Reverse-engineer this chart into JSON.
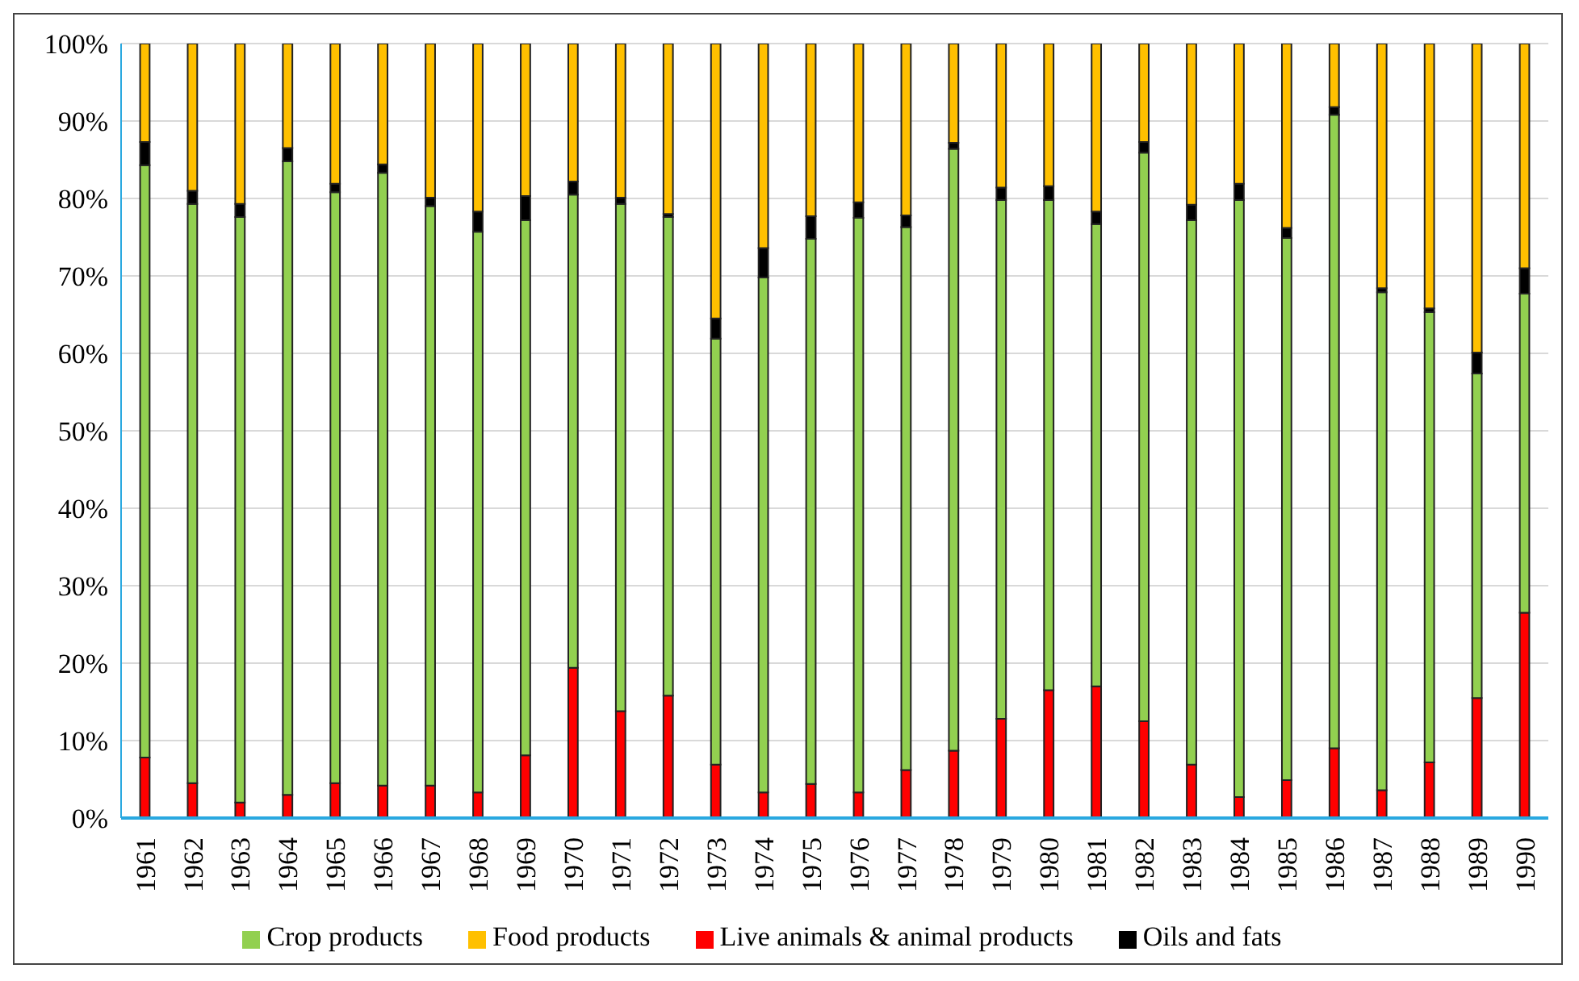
{
  "chart_data": {
    "type": "bar",
    "stacked": true,
    "categories": [
      "1961",
      "1962",
      "1963",
      "1964",
      "1965",
      "1966",
      "1967",
      "1968",
      "1969",
      "1970",
      "1971",
      "1972",
      "1973",
      "1974",
      "1975",
      "1976",
      "1977",
      "1978",
      "1979",
      "1980",
      "1981",
      "1982",
      "1983",
      "1984",
      "1985",
      "1986",
      "1987",
      "1988",
      "1989",
      "1990"
    ],
    "series": [
      {
        "name": "Live animals & animal products",
        "color": "#ff0000",
        "values": [
          7.8,
          4.5,
          2.0,
          3.0,
          4.5,
          4.2,
          4.2,
          3.3,
          8.1,
          19.4,
          13.8,
          15.8,
          6.9,
          3.3,
          4.4,
          3.3,
          6.2,
          8.7,
          12.8,
          16.5,
          17.0,
          12.5,
          6.9,
          2.7,
          4.9,
          9.0,
          3.6,
          7.2,
          15.5,
          26.5
        ]
      },
      {
        "name": "Crop products",
        "color": "#92d050",
        "values": [
          76.5,
          74.8,
          75.6,
          81.8,
          76.3,
          79.1,
          74.8,
          72.4,
          69.1,
          61.1,
          65.5,
          61.8,
          55.0,
          66.5,
          70.4,
          74.2,
          70.1,
          77.7,
          67.0,
          63.3,
          59.7,
          73.4,
          70.3,
          77.1,
          70.0,
          81.8,
          64.3,
          58.1,
          41.9,
          41.2
        ]
      },
      {
        "name": "Oils and fats",
        "color": "#000000",
        "values": [
          3.0,
          1.7,
          1.7,
          1.7,
          1.1,
          1.1,
          1.1,
          2.6,
          3.1,
          1.7,
          0.8,
          0.4,
          2.6,
          3.8,
          2.9,
          2.0,
          1.5,
          0.8,
          1.6,
          1.8,
          1.6,
          1.4,
          2.0,
          2.1,
          1.3,
          1.0,
          0.5,
          0.5,
          2.7,
          3.3
        ]
      },
      {
        "name": "Food products",
        "color": "#ffc000",
        "values": [
          12.7,
          19.0,
          20.7,
          13.5,
          18.1,
          15.6,
          19.9,
          21.7,
          19.7,
          17.8,
          19.9,
          22.0,
          35.5,
          26.4,
          22.3,
          20.5,
          22.2,
          12.8,
          18.6,
          18.4,
          21.7,
          12.7,
          20.8,
          18.1,
          23.8,
          8.2,
          31.6,
          34.2,
          39.9,
          29.0
        ]
      }
    ],
    "ylim": [
      0,
      100
    ],
    "yticks": [
      {
        "value": 0,
        "label": "0%"
      },
      {
        "value": 10,
        "label": "10%"
      },
      {
        "value": 20,
        "label": "20%"
      },
      {
        "value": 30,
        "label": "30%"
      },
      {
        "value": 40,
        "label": "40%"
      },
      {
        "value": 50,
        "label": "50%"
      },
      {
        "value": 60,
        "label": "60%"
      },
      {
        "value": 70,
        "label": "70%"
      },
      {
        "value": 80,
        "label": "80%"
      },
      {
        "value": 90,
        "label": "90%"
      },
      {
        "value": 100,
        "label": "100%"
      }
    ],
    "grid": "y",
    "legend": "bottom"
  }
}
